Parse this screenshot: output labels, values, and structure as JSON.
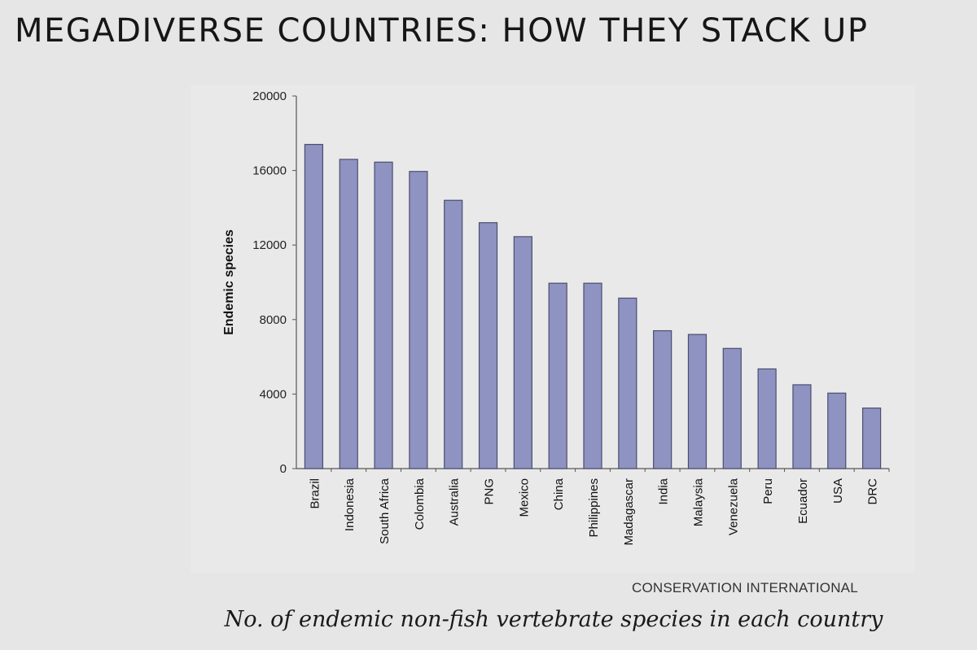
{
  "page": {
    "title": "MEGADIVERSE COUNTRIES: HOW THEY STACK UP",
    "source": "CONSERVATION INTERNATIONAL",
    "caption": "No. of endemic non-fish vertebrate species in each country"
  },
  "colors": {
    "background": "#e6e6e6",
    "bar_fill": "#8f93c2",
    "bar_stroke": "#4b4d70",
    "axis": "#555555"
  },
  "chart_data": {
    "type": "bar",
    "title": "",
    "xlabel": "",
    "ylabel": "Endemic species",
    "ylim": [
      0,
      20000
    ],
    "yticks": [
      0,
      4000,
      8000,
      12000,
      16000,
      20000
    ],
    "grid": false,
    "categories": [
      "Brazil",
      "Indonesia",
      "South Africa",
      "Colombia",
      "Australia",
      "PNG",
      "Mexico",
      "China",
      "Philippines",
      "Madagascar",
      "India",
      "Malaysia",
      "Venezuela",
      "Peru",
      "Ecuador",
      "USA",
      "DRC"
    ],
    "values": [
      17400,
      16600,
      16450,
      15950,
      14400,
      13200,
      12450,
      9950,
      9950,
      9150,
      7400,
      7200,
      6450,
      5350,
      4500,
      4050,
      3250
    ]
  }
}
